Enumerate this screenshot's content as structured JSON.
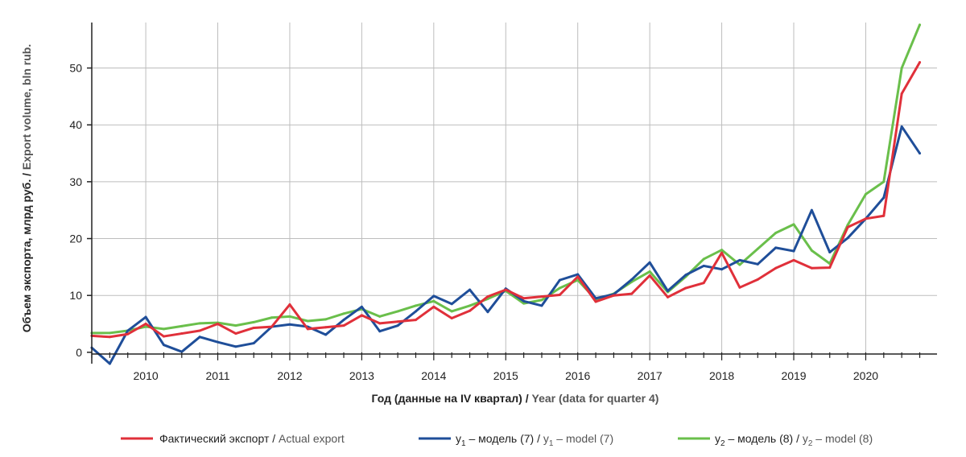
{
  "chart_data": {
    "type": "line",
    "xlabel": {
      "ru": "Год (данные на IV квартал)",
      "sep": " / ",
      "en": "Year (data for quarter 4)"
    },
    "ylabel": {
      "ru": "Объем экспорта, млрд руб.",
      "sep": " / ",
      "en": "Export volume, bln rub."
    },
    "x_ticks": [
      "2010",
      "2011",
      "2012",
      "2013",
      "2014",
      "2015",
      "2016",
      "2017",
      "2018",
      "2019",
      "2020"
    ],
    "y_ticks": [
      "0",
      "10",
      "20",
      "30",
      "40",
      "50"
    ],
    "xlim": [
      2009.25,
      2020.99
    ],
    "ylim": [
      -2,
      58
    ],
    "grid": true,
    "legend_position": "bottom",
    "colors": {
      "actual": "#e0303a",
      "model7": "#1f4e99",
      "model8": "#6abf4b",
      "grid": "#bdbdbd"
    },
    "x": [
      2009.25,
      2009.5,
      2009.75,
      2010.0,
      2010.25,
      2010.5,
      2010.75,
      2011.0,
      2011.25,
      2011.5,
      2011.75,
      2012.0,
      2012.25,
      2012.5,
      2012.75,
      2013.0,
      2013.25,
      2013.5,
      2013.75,
      2014.0,
      2014.25,
      2014.5,
      2014.75,
      2015.0,
      2015.25,
      2015.5,
      2015.75,
      2016.0,
      2016.25,
      2016.5,
      2016.75,
      2017.0,
      2017.25,
      2017.5,
      2017.75,
      2018.0,
      2018.25,
      2018.5,
      2018.75,
      2019.0,
      2019.25,
      2019.5,
      2019.75,
      2020.0,
      2020.25,
      2020.5,
      2020.75
    ],
    "series": [
      {
        "key": "actual",
        "legend": {
          "ru": "Фактический экспорт",
          "sep": " / ",
          "en": "Actual export"
        },
        "values": [
          2.9,
          2.7,
          3.2,
          5.0,
          2.8,
          3.3,
          3.8,
          5.0,
          3.3,
          4.3,
          4.5,
          8.4,
          4.1,
          4.4,
          4.7,
          6.5,
          5.1,
          5.4,
          5.7,
          8.0,
          6.0,
          7.3,
          9.8,
          11.0,
          9.5,
          9.8,
          10.1,
          13.3,
          8.9,
          10.0,
          10.3,
          13.5,
          9.7,
          11.3,
          12.2,
          17.5,
          11.4,
          12.8,
          14.8,
          16.2,
          14.8,
          14.9,
          22.0,
          23.5,
          24.0,
          45.5,
          51.0
        ]
      },
      {
        "key": "model7",
        "legend": {
          "ru": "y",
          "sub": "1",
          "ru_rest": " – модель (7)",
          "sep": " / ",
          "en": "y",
          "en_sub": "1",
          "en_rest": " – model (7)"
        },
        "values": [
          0.8,
          -2.0,
          3.8,
          6.2,
          1.3,
          0.1,
          2.7,
          1.8,
          1.0,
          1.6,
          4.5,
          4.9,
          4.5,
          3.1,
          5.7,
          8.0,
          3.7,
          4.7,
          7.2,
          9.9,
          8.5,
          11.0,
          7.1,
          11.2,
          9.0,
          8.2,
          12.7,
          13.7,
          9.5,
          10.2,
          12.8,
          15.8,
          10.8,
          13.6,
          15.2,
          14.6,
          16.2,
          15.5,
          18.4,
          17.8,
          25.0,
          17.6,
          20.1,
          23.5,
          27.2,
          39.7,
          35.0
        ]
      },
      {
        "key": "model8",
        "legend": {
          "ru": "y",
          "sub": "2",
          "ru_rest": " – модель (8)",
          "sep": " / ",
          "en": "y",
          "en_sub": "2",
          "en_rest": " – model (8)"
        },
        "values": [
          3.4,
          3.4,
          3.8,
          4.5,
          4.1,
          4.6,
          5.1,
          5.2,
          4.7,
          5.3,
          6.1,
          6.3,
          5.5,
          5.8,
          6.8,
          7.6,
          6.3,
          7.2,
          8.2,
          9.0,
          7.2,
          8.2,
          9.4,
          10.8,
          8.6,
          9.2,
          11.3,
          12.7,
          9.3,
          10.3,
          12.4,
          14.2,
          10.6,
          13.3,
          16.4,
          18.0,
          15.4,
          18.2,
          21.0,
          22.5,
          17.9,
          15.6,
          22.4,
          27.8,
          30.0,
          50.0,
          57.6
        ]
      }
    ]
  }
}
